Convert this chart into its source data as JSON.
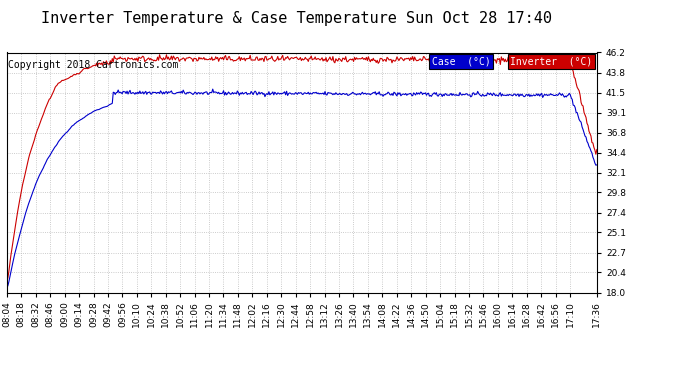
{
  "title": "Inverter Temperature & Case Temperature Sun Oct 28 17:40",
  "copyright": "Copyright 2018 Cartronics.com",
  "background_color": "#ffffff",
  "plot_background": "#ffffff",
  "grid_color": "#bbbbbb",
  "ylim": [
    18.0,
    46.2
  ],
  "yticks": [
    18.0,
    20.4,
    22.7,
    25.1,
    27.4,
    29.8,
    32.1,
    34.4,
    36.8,
    39.1,
    41.5,
    43.8,
    46.2
  ],
  "xtick_labels": [
    "08:04",
    "08:18",
    "08:32",
    "08:46",
    "09:00",
    "09:14",
    "09:28",
    "09:42",
    "09:56",
    "10:10",
    "10:24",
    "10:38",
    "10:52",
    "11:06",
    "11:20",
    "11:34",
    "11:48",
    "12:02",
    "12:16",
    "12:30",
    "12:44",
    "12:58",
    "13:12",
    "13:26",
    "13:40",
    "13:54",
    "14:08",
    "14:22",
    "14:36",
    "14:50",
    "15:04",
    "15:18",
    "15:32",
    "15:46",
    "16:00",
    "16:14",
    "16:28",
    "16:42",
    "16:56",
    "17:10",
    "17:36"
  ],
  "case_color": "#0000cc",
  "inverter_color": "#cc0000",
  "legend_case_bg": "#0000cc",
  "legend_inverter_bg": "#cc0000",
  "legend_text_color": "#ffffff",
  "title_fontsize": 11,
  "copyright_fontsize": 7,
  "tick_fontsize": 6.5
}
